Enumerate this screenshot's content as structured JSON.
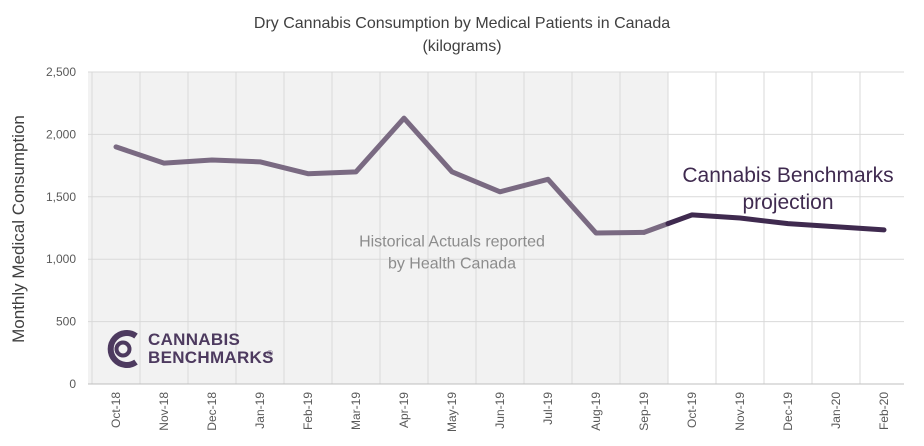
{
  "chart_data": {
    "type": "line",
    "title": "Dry Cannabis Consumption by Medical Patients in Canada",
    "subtitle": "(kilograms)",
    "ylabel": "Monthly Medical Consumption",
    "xlabel": "",
    "ylim": [
      0,
      2500
    ],
    "yticks": [
      0,
      500,
      1000,
      1500,
      2000,
      2500
    ],
    "ytick_labels": [
      "0",
      "500",
      "1,000",
      "1,500",
      "2,000",
      "2,500"
    ],
    "categories": [
      "Oct-18",
      "Nov-18",
      "Dec-18",
      "Jan-19",
      "Feb-19",
      "Mar-19",
      "Apr-19",
      "May-19",
      "Jun-19",
      "Jul-19",
      "Aug-19",
      "Sep-19",
      "Oct-19",
      "Nov-19",
      "Dec-19",
      "Jan-20",
      "Feb-20"
    ],
    "x_start": "Oct-18",
    "x_end": "Feb-20",
    "grid": true,
    "series": [
      {
        "values": [
          1900,
          1770,
          1795,
          1780,
          1685,
          1700,
          2130,
          1700,
          1540,
          1640,
          1210,
          1215,
          1355,
          1330,
          1285,
          1260,
          1235
        ],
        "historical_through_index": 11,
        "historical_color": "#7a6a82",
        "projection_color": "#3f2a4f"
      }
    ],
    "shaded_region": {
      "from": "Oct-18",
      "to": "Sep-19",
      "color": "#f2f2f2"
    },
    "annotations": [
      {
        "lines": [
          "Historical Actuals reported",
          "by Health Canada"
        ],
        "x": "May-19",
        "y": 1100
      },
      {
        "lines": [
          "Cannabis Benchmarks",
          "projection"
        ],
        "x": "Dec-19",
        "y": 1620
      }
    ]
  },
  "logo": {
    "line1": "CANNABIS",
    "line2": "BENCHMARKS",
    "mark": "®",
    "color": "#4d3a5f"
  }
}
